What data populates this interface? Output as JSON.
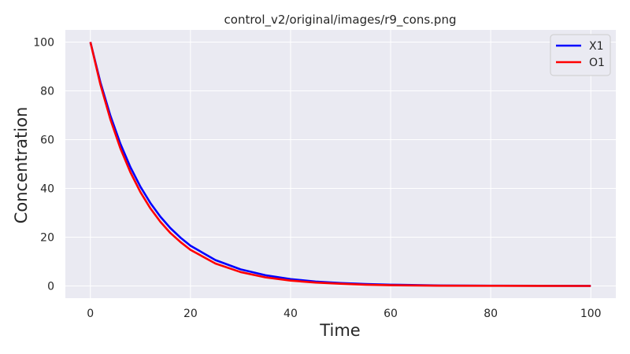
{
  "chart_data": {
    "type": "line",
    "title": "control_v2/original/images/r9_cons.png",
    "xlabel": "Time",
    "ylabel": "Concentration",
    "xlim": [
      -5,
      105
    ],
    "ylim": [
      -5,
      105
    ],
    "xticks": [
      0,
      20,
      40,
      60,
      80,
      100
    ],
    "yticks": [
      0,
      20,
      40,
      60,
      80,
      100
    ],
    "grid": true,
    "legend_position": "top-right",
    "background": "#eaeaf2",
    "x": [
      0,
      2,
      4,
      6,
      8,
      10,
      12,
      14,
      16,
      18,
      20,
      25,
      30,
      35,
      40,
      45,
      50,
      55,
      60,
      70,
      80,
      90,
      100
    ],
    "series": [
      {
        "name": "X1",
        "color": "#0000ff",
        "values": [
          100,
          83.5,
          69.8,
          58.3,
          48.7,
          40.7,
          34.0,
          28.4,
          23.7,
          19.8,
          16.5,
          10.6,
          6.8,
          4.4,
          2.8,
          1.8,
          1.2,
          0.8,
          0.5,
          0.2,
          0.1,
          0.05,
          0.02
        ]
      },
      {
        "name": "O1",
        "color": "#ff0000",
        "values": [
          100,
          82.6,
          68.3,
          56.4,
          46.6,
          38.5,
          31.8,
          26.3,
          21.7,
          18.0,
          14.8,
          9.2,
          5.7,
          3.5,
          2.2,
          1.4,
          0.9,
          0.5,
          0.3,
          0.1,
          0.05,
          0.02,
          0.01
        ]
      }
    ]
  }
}
